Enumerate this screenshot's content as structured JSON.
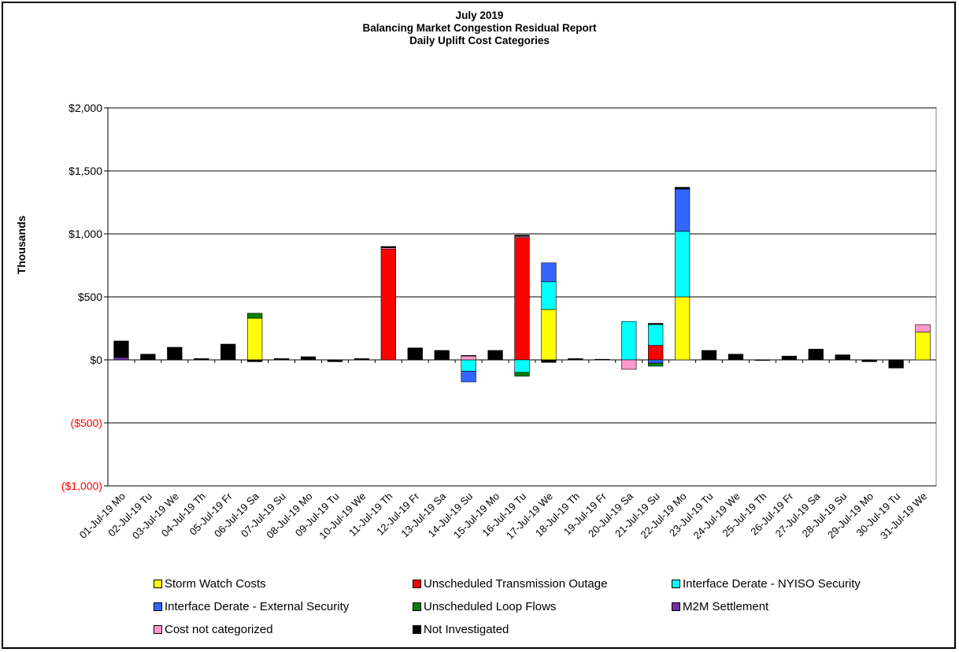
{
  "chart_data": {
    "type": "bar",
    "stacked": true,
    "title": "July 2019",
    "subtitle": "Balancing Market Congestion Residual Report",
    "subtitle2": "Daily Uplift Cost Categories",
    "ylabel": "Thousands",
    "xlabel": "",
    "ylim": [
      -1000,
      2000
    ],
    "yticks": [
      {
        "value": 2000,
        "label": "$2,000",
        "color": "#000000"
      },
      {
        "value": 1500,
        "label": "$1,500",
        "color": "#000000"
      },
      {
        "value": 1000,
        "label": "$1,000",
        "color": "#000000"
      },
      {
        "value": 500,
        "label": "$500",
        "color": "#000000"
      },
      {
        "value": 0,
        "label": "$0",
        "color": "#000000"
      },
      {
        "value": -500,
        "label": "($500)",
        "color": "#ff0000"
      },
      {
        "value": -1000,
        "label": "($1,000)",
        "color": "#ff0000"
      }
    ],
    "grid": true,
    "legend_position": "bottom",
    "categories": [
      "01-Jul-19 Mo",
      "02-Jul-19 Tu",
      "03-Jul-19 We",
      "04-Jul-19 Th",
      "05-Jul-19 Fr",
      "06-Jul-19 Sa",
      "07-Jul-19 Su",
      "08-Jul-19 Mo",
      "09-Jul-19 Tu",
      "10-Jul-19 We",
      "11-Jul-19 Th",
      "12-Jul-19 Fr",
      "13-Jul-19 Sa",
      "14-Jul-19 Su",
      "15-Jul-19 Mo",
      "16-Jul-19 Tu",
      "17-Jul-19 We",
      "18-Jul-19 Th",
      "19-Jul-19 Fr",
      "20-Jul-19 Sa",
      "21-Jul-19 Su",
      "22-Jul-19 Mo",
      "23-Jul-19 Tu",
      "24-Jul-19 We",
      "25-Jul-19 Th",
      "26-Jul-19 Fr",
      "27-Jul-19 Sa",
      "28-Jul-19 Su",
      "29-Jul-19 Mo",
      "30-Jul-19 Tu",
      "31-Jul-19 We"
    ],
    "series": [
      {
        "name": "Storm Watch Costs",
        "color": "#ffff00",
        "values": [
          0,
          0,
          0,
          0,
          0,
          330,
          0,
          0,
          0,
          0,
          0,
          0,
          0,
          0,
          0,
          0,
          400,
          0,
          0,
          0,
          0,
          500,
          0,
          0,
          0,
          0,
          0,
          0,
          0,
          0,
          220
        ]
      },
      {
        "name": "Unscheduled Transmission Outage",
        "color": "#ff0000",
        "values": [
          0,
          0,
          0,
          0,
          0,
          0,
          0,
          0,
          0,
          0,
          880,
          0,
          0,
          0,
          0,
          970,
          0,
          0,
          0,
          0,
          115,
          0,
          0,
          0,
          0,
          0,
          0,
          0,
          0,
          0,
          0
        ]
      },
      {
        "name": "Interface Derate - NYISO Security",
        "color": "#00ffff",
        "values": [
          0,
          0,
          0,
          0,
          0,
          0,
          0,
          0,
          0,
          0,
          0,
          0,
          0,
          -90,
          0,
          -100,
          220,
          0,
          0,
          305,
          165,
          520,
          0,
          0,
          0,
          0,
          0,
          0,
          0,
          0,
          0
        ]
      },
      {
        "name": "Interface Derate - External Security",
        "color": "#3366ff",
        "values": [
          0,
          0,
          0,
          0,
          0,
          0,
          0,
          0,
          0,
          0,
          0,
          0,
          0,
          -85,
          0,
          0,
          150,
          0,
          0,
          0,
          -25,
          335,
          0,
          0,
          0,
          0,
          0,
          0,
          0,
          0,
          0
        ]
      },
      {
        "name": "Unscheduled Loop Flows",
        "color": "#008000",
        "values": [
          0,
          0,
          0,
          0,
          0,
          40,
          0,
          0,
          0,
          0,
          0,
          0,
          0,
          0,
          0,
          -30,
          0,
          0,
          0,
          0,
          -25,
          0,
          0,
          0,
          0,
          0,
          0,
          0,
          0,
          0,
          0
        ]
      },
      {
        "name": "M2M Settlement",
        "color": "#7030a0",
        "values": [
          20,
          0,
          0,
          0,
          0,
          0,
          0,
          0,
          0,
          0,
          0,
          0,
          0,
          0,
          0,
          0,
          0,
          0,
          0,
          0,
          0,
          0,
          0,
          0,
          0,
          0,
          0,
          0,
          0,
          0,
          0
        ]
      },
      {
        "name": "Cost not categorized",
        "color": "#ff99cc",
        "values": [
          0,
          0,
          0,
          0,
          0,
          0,
          0,
          0,
          0,
          0,
          10,
          0,
          0,
          30,
          0,
          10,
          0,
          0,
          0,
          -75,
          0,
          0,
          0,
          0,
          0,
          0,
          0,
          0,
          0,
          0,
          60
        ]
      },
      {
        "name": "Not Investigated",
        "color": "#000000",
        "values": [
          130,
          45,
          100,
          10,
          125,
          -15,
          10,
          25,
          -15,
          10,
          10,
          95,
          75,
          5,
          75,
          10,
          -20,
          10,
          5,
          0,
          10,
          15,
          75,
          45,
          -5,
          30,
          85,
          40,
          -15,
          -65,
          0
        ]
      }
    ]
  }
}
